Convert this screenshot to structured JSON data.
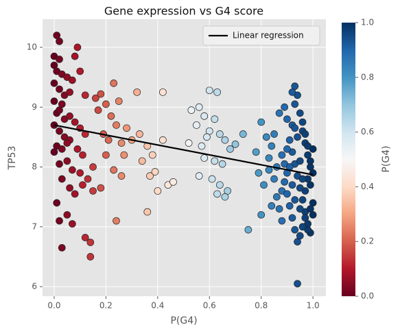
{
  "chart_data": {
    "type": "scatter",
    "title": "Gene expression vs G4 score",
    "xlabel": "P(G4)",
    "ylabel": "TP53",
    "xlim": [
      -0.045,
      1.05
    ],
    "ylim": [
      5.84,
      10.47
    ],
    "xticks": [
      {
        "value": 0,
        "label": "0.0"
      },
      {
        "value": 0.2,
        "label": "0.2"
      },
      {
        "value": 0.4,
        "label": "0.4"
      },
      {
        "value": 0.6,
        "label": "0.6"
      },
      {
        "value": 0.8,
        "label": "0.8"
      },
      {
        "value": 1,
        "label": "1.0"
      }
    ],
    "yticks": [
      6,
      7,
      8,
      9,
      10
    ],
    "grid": true,
    "colormap": [
      "#67001f",
      "#b2182b",
      "#d6604d",
      "#f4a582",
      "#fddbc7",
      "#f7f7f7",
      "#d1e5f0",
      "#92c5de",
      "#4393c3",
      "#2166ac",
      "#053061"
    ],
    "clim": [
      0,
      1
    ],
    "colorbar_label": "P(G4)",
    "colorbar_ticks": [
      {
        "value": 0,
        "label": "0.0"
      },
      {
        "value": 0.2,
        "label": "0.2"
      },
      {
        "value": 0.4,
        "label": "0.4"
      },
      {
        "value": 0.6,
        "label": "0.6"
      },
      {
        "value": 0.8,
        "label": "0.8"
      },
      {
        "value": 1,
        "label": "1.0"
      }
    ],
    "regression": {
      "name": "Linear regression",
      "color": "#000000",
      "x": [
        0,
        1
      ],
      "y": [
        8.7,
        7.87
      ]
    },
    "legend": "upper right",
    "x": [
      0.01,
      0.02,
      0.0,
      0.02,
      0.0,
      0.01,
      0.03,
      0.05,
      0.07,
      0.08,
      0.09,
      0.0,
      0.02,
      0.04,
      0.06,
      0.03,
      0.0,
      0.01,
      0.02,
      0.04,
      0.06,
      0.08,
      0.0,
      0.02,
      0.04,
      0.06,
      0.1,
      0.12,
      0.01,
      0.03,
      0.05,
      0.09,
      0.11,
      0.0,
      0.02,
      0.05,
      0.07,
      0.1,
      0.03,
      0.06,
      0.08,
      0.11,
      0.01,
      0.05,
      0.07,
      0.02,
      0.03,
      0.12,
      0.14,
      0.14,
      0.12,
      0.1,
      0.13,
      0.15,
      0.15,
      0.16,
      0.18,
      0.2,
      0.23,
      0.25,
      0.17,
      0.22,
      0.24,
      0.28,
      0.19,
      0.21,
      0.26,
      0.3,
      0.33,
      0.36,
      0.32,
      0.42,
      0.2,
      0.27,
      0.34,
      0.38,
      0.23,
      0.26,
      0.37,
      0.39,
      0.18,
      0.4,
      0.36,
      0.24,
      0.42,
      0.44,
      0.46,
      0.53,
      0.56,
      0.6,
      0.63,
      0.58,
      0.62,
      0.55,
      0.6,
      0.64,
      0.52,
      0.57,
      0.59,
      0.66,
      0.7,
      0.68,
      0.58,
      0.62,
      0.65,
      0.56,
      0.61,
      0.64,
      0.63,
      0.67,
      0.66,
      0.73,
      0.75,
      0.8,
      0.82,
      0.84,
      0.83,
      0.86,
      0.85,
      0.81,
      0.88,
      0.84,
      0.8,
      0.87,
      0.89,
      0.9,
      0.92,
      0.93,
      0.94,
      0.95,
      0.96,
      0.97,
      0.98,
      0.99,
      1.0,
      0.91,
      0.92,
      0.93,
      0.94,
      0.95,
      0.96,
      0.97,
      0.98,
      0.99,
      0.9,
      0.91,
      0.92,
      0.93,
      0.94,
      0.95,
      0.96,
      0.97,
      0.98,
      0.99,
      1.0,
      0.88,
      0.89,
      0.9,
      0.86,
      0.87,
      0.88,
      0.93,
      0.92,
      0.94,
      0.96,
      0.97,
      0.98,
      0.99,
      1.0,
      0.95,
      0.94,
      0.93,
      0.91,
      0.9,
      0.89,
      0.85,
      0.83,
      0.97,
      0.98,
      0.99,
      1.0,
      0.95,
      0.96,
      0.92,
      0.93,
      0.78,
      0.79
    ],
    "y": [
      10.2,
      10.1,
      9.85,
      9.8,
      9.7,
      9.6,
      9.55,
      9.5,
      9.45,
      9.85,
      10.0,
      9.4,
      9.3,
      9.2,
      9.25,
      9.05,
      9.1,
      8.9,
      8.95,
      8.8,
      8.85,
      8.75,
      8.7,
      8.6,
      8.5,
      8.45,
      8.65,
      8.55,
      8.35,
      8.3,
      8.4,
      8.3,
      8.2,
      8.25,
      8.05,
      8.1,
      7.95,
      7.9,
      7.8,
      7.65,
      7.55,
      7.7,
      7.4,
      7.2,
      7.05,
      7.1,
      6.65,
      6.82,
      6.74,
      6.5,
      9.2,
      9.6,
      7.8,
      8.0,
      7.6,
      9.15,
      9.22,
      9.05,
      9.4,
      9.1,
      8.95,
      8.85,
      8.7,
      8.65,
      8.55,
      8.45,
      8.4,
      8.45,
      8.55,
      8.35,
      9.25,
      9.25,
      8.2,
      8.2,
      8.1,
      8.2,
      7.95,
      7.85,
      7.85,
      7.92,
      7.65,
      7.6,
      7.25,
      7.1,
      8.45,
      7.7,
      7.75,
      8.95,
      9.0,
      9.28,
      9.25,
      8.85,
      8.8,
      8.7,
      8.6,
      8.55,
      8.4,
      8.35,
      8.5,
      8.45,
      8.38,
      8.3,
      8.15,
      8.1,
      8.05,
      7.85,
      7.8,
      7.7,
      7.55,
      7.6,
      7.5,
      8.55,
      6.95,
      8.75,
      8.5,
      8.35,
      8.15,
      8.0,
      7.8,
      7.7,
      7.6,
      7.35,
      7.2,
      8.9,
      9.0,
      8.8,
      8.7,
      9.05,
      9.2,
      8.9,
      8.6,
      8.4,
      8.2,
      8.0,
      7.9,
      8.45,
      8.25,
      8.05,
      7.85,
      7.65,
      7.45,
      7.25,
      7.05,
      6.9,
      7.55,
      7.35,
      7.15,
      6.95,
      6.75,
      6.85,
      7.0,
      7.6,
      7.8,
      8.1,
      8.3,
      8.2,
      8.05,
      7.9,
      7.5,
      7.3,
      7.1,
      9.35,
      9.25,
      6.05,
      8.75,
      8.55,
      8.35,
      7.7,
      7.4,
      8.1,
      8.5,
      8.65,
      8.0,
      8.3,
      7.75,
      8.55,
      7.95,
      7.15,
      6.95,
      7.3,
      7.2,
      7.3,
      7.8,
      7.7,
      7.45,
      8.25,
      7.9
    ]
  }
}
